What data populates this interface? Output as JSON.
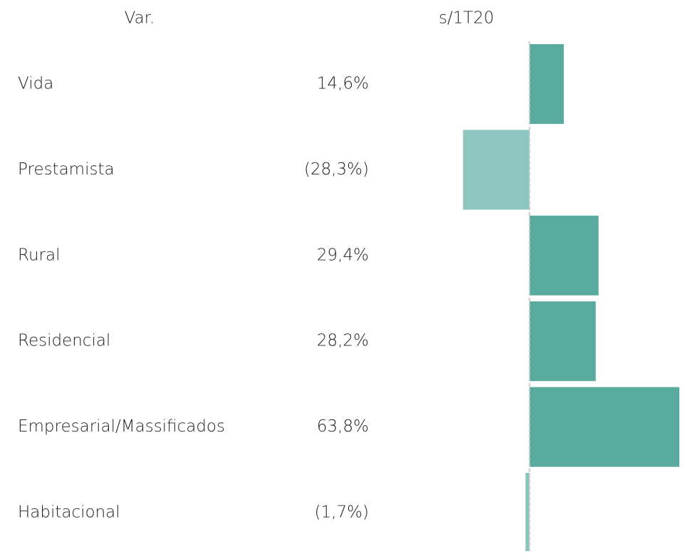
{
  "chart_data": {
    "type": "bar",
    "orientation": "horizontal",
    "headers": [
      "Var.",
      "s/1T20"
    ],
    "categories": [
      "Vida",
      "Prestamista",
      "Rural",
      "Residencial",
      "Empresarial/Massificados",
      "Habitacional"
    ],
    "values": [
      14.6,
      -28.3,
      29.4,
      28.2,
      63.8,
      -1.7
    ],
    "value_labels": [
      "14,6%",
      "(28,3%)",
      "29,4%",
      "28,2%",
      "63,8%",
      "(1,7%)"
    ],
    "xlim": [
      -29,
      65
    ],
    "color": "#5aab9f",
    "negative_color": "#8dc5bf"
  }
}
